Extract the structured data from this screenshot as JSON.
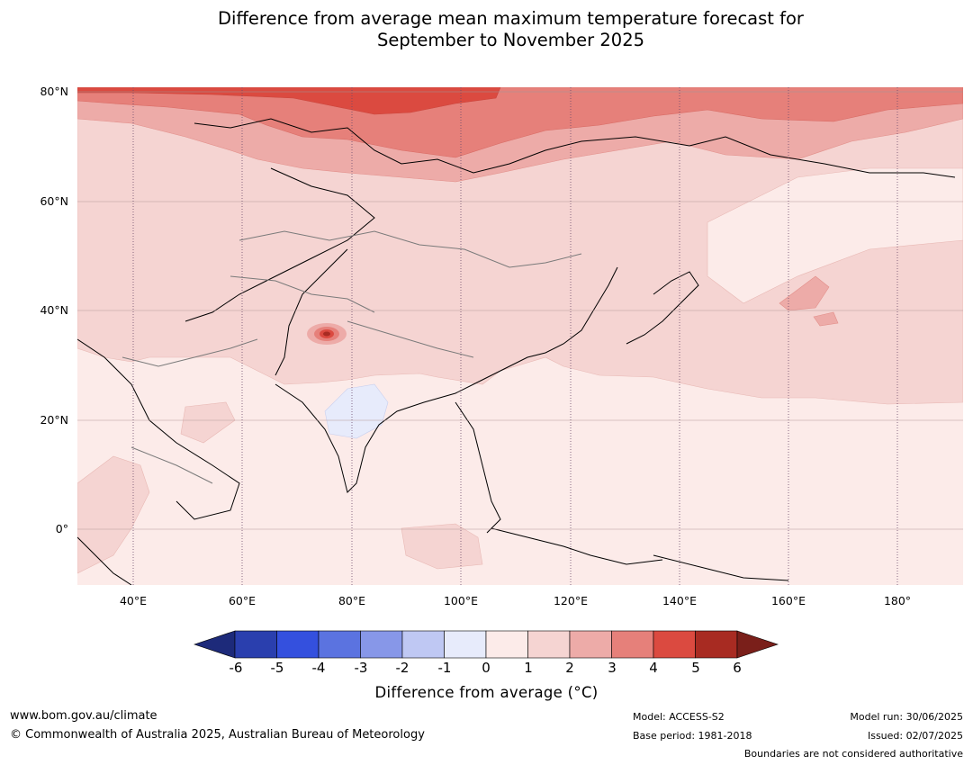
{
  "title": {
    "line1": "Difference from average mean maximum temperature forecast for",
    "line2": "September to November 2025"
  },
  "map": {
    "lat_labels": [
      "80°N",
      "60°N",
      "40°N",
      "20°N",
      "0°"
    ],
    "lon_labels": [
      "40°E",
      "60°E",
      "80°E",
      "100°E",
      "120°E",
      "140°E",
      "160°E",
      "180°"
    ]
  },
  "colorbar": {
    "ticks": [
      "-6",
      "-5",
      "-4",
      "-3",
      "-2",
      "-1",
      "0",
      "1",
      "2",
      "3",
      "4",
      "5",
      "6"
    ],
    "colors": [
      "#1d2a7a",
      "#2a3fae",
      "#3450de",
      "#5b73e0",
      "#8797e8",
      "#bfc8f3",
      "#e7ebfb",
      "#fcebe9",
      "#f5d4d2",
      "#edaba8",
      "#e6807a",
      "#db4a40",
      "#a82b22",
      "#7a1f1a"
    ],
    "label": "Difference from average (°C)"
  },
  "footer": {
    "website": "www.bom.gov.au/climate",
    "copyright": "© Commonwealth of Australia 2025, Australian Bureau of Meteorology",
    "model": "Model: ACCESS-S2",
    "base_period": "Base period: 1981-2018",
    "model_run": "Model run: 30/06/2025",
    "issued": "Issued: 02/07/2025",
    "boundaries": "Boundaries are not considered authoritative"
  }
}
